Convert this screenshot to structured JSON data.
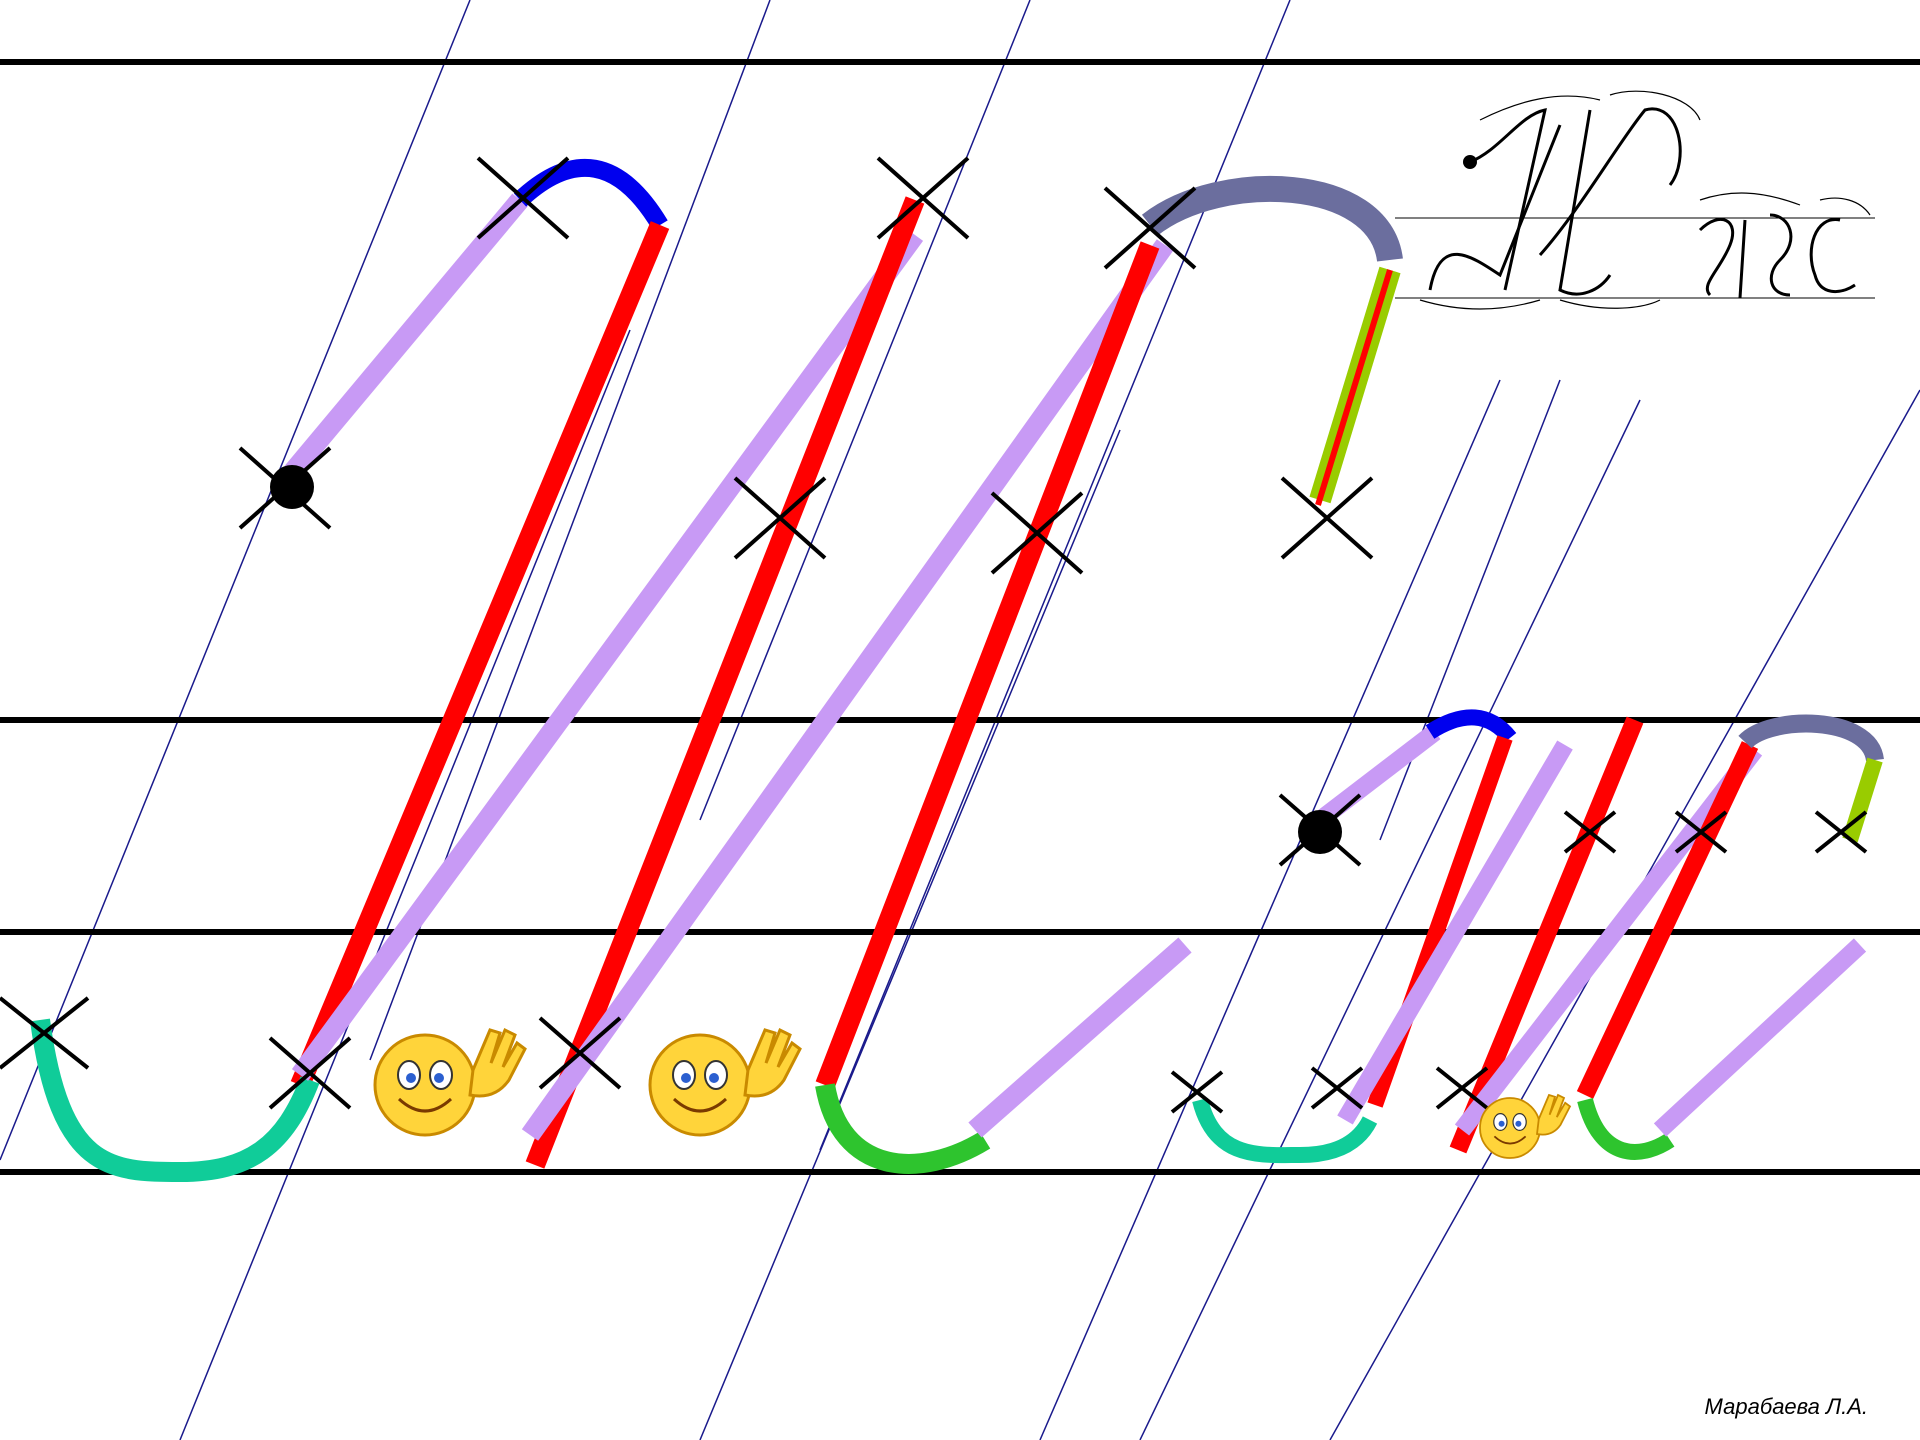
{
  "author": "Марабаева Л.А.",
  "sample_letters": "Жж",
  "colors": {
    "baseline": "#000000",
    "slant_guides": "#1a1a8c",
    "main_stroke": "#ff0000",
    "connecting_stroke": "#c89af5",
    "top_arc": "#0000ee",
    "top_arc_wide": "#6b6e9e",
    "bottom_loop": "#10cc99",
    "bottom_hook": "#2ec42e",
    "hook_end": "#99cc00",
    "marks": "#000000"
  },
  "icons": {
    "reference": "cursive-letter-sample-icon",
    "start_point": "start-dot-icon",
    "control_point": "cross-mark-icon",
    "smile": "waving-smiley-icon"
  }
}
